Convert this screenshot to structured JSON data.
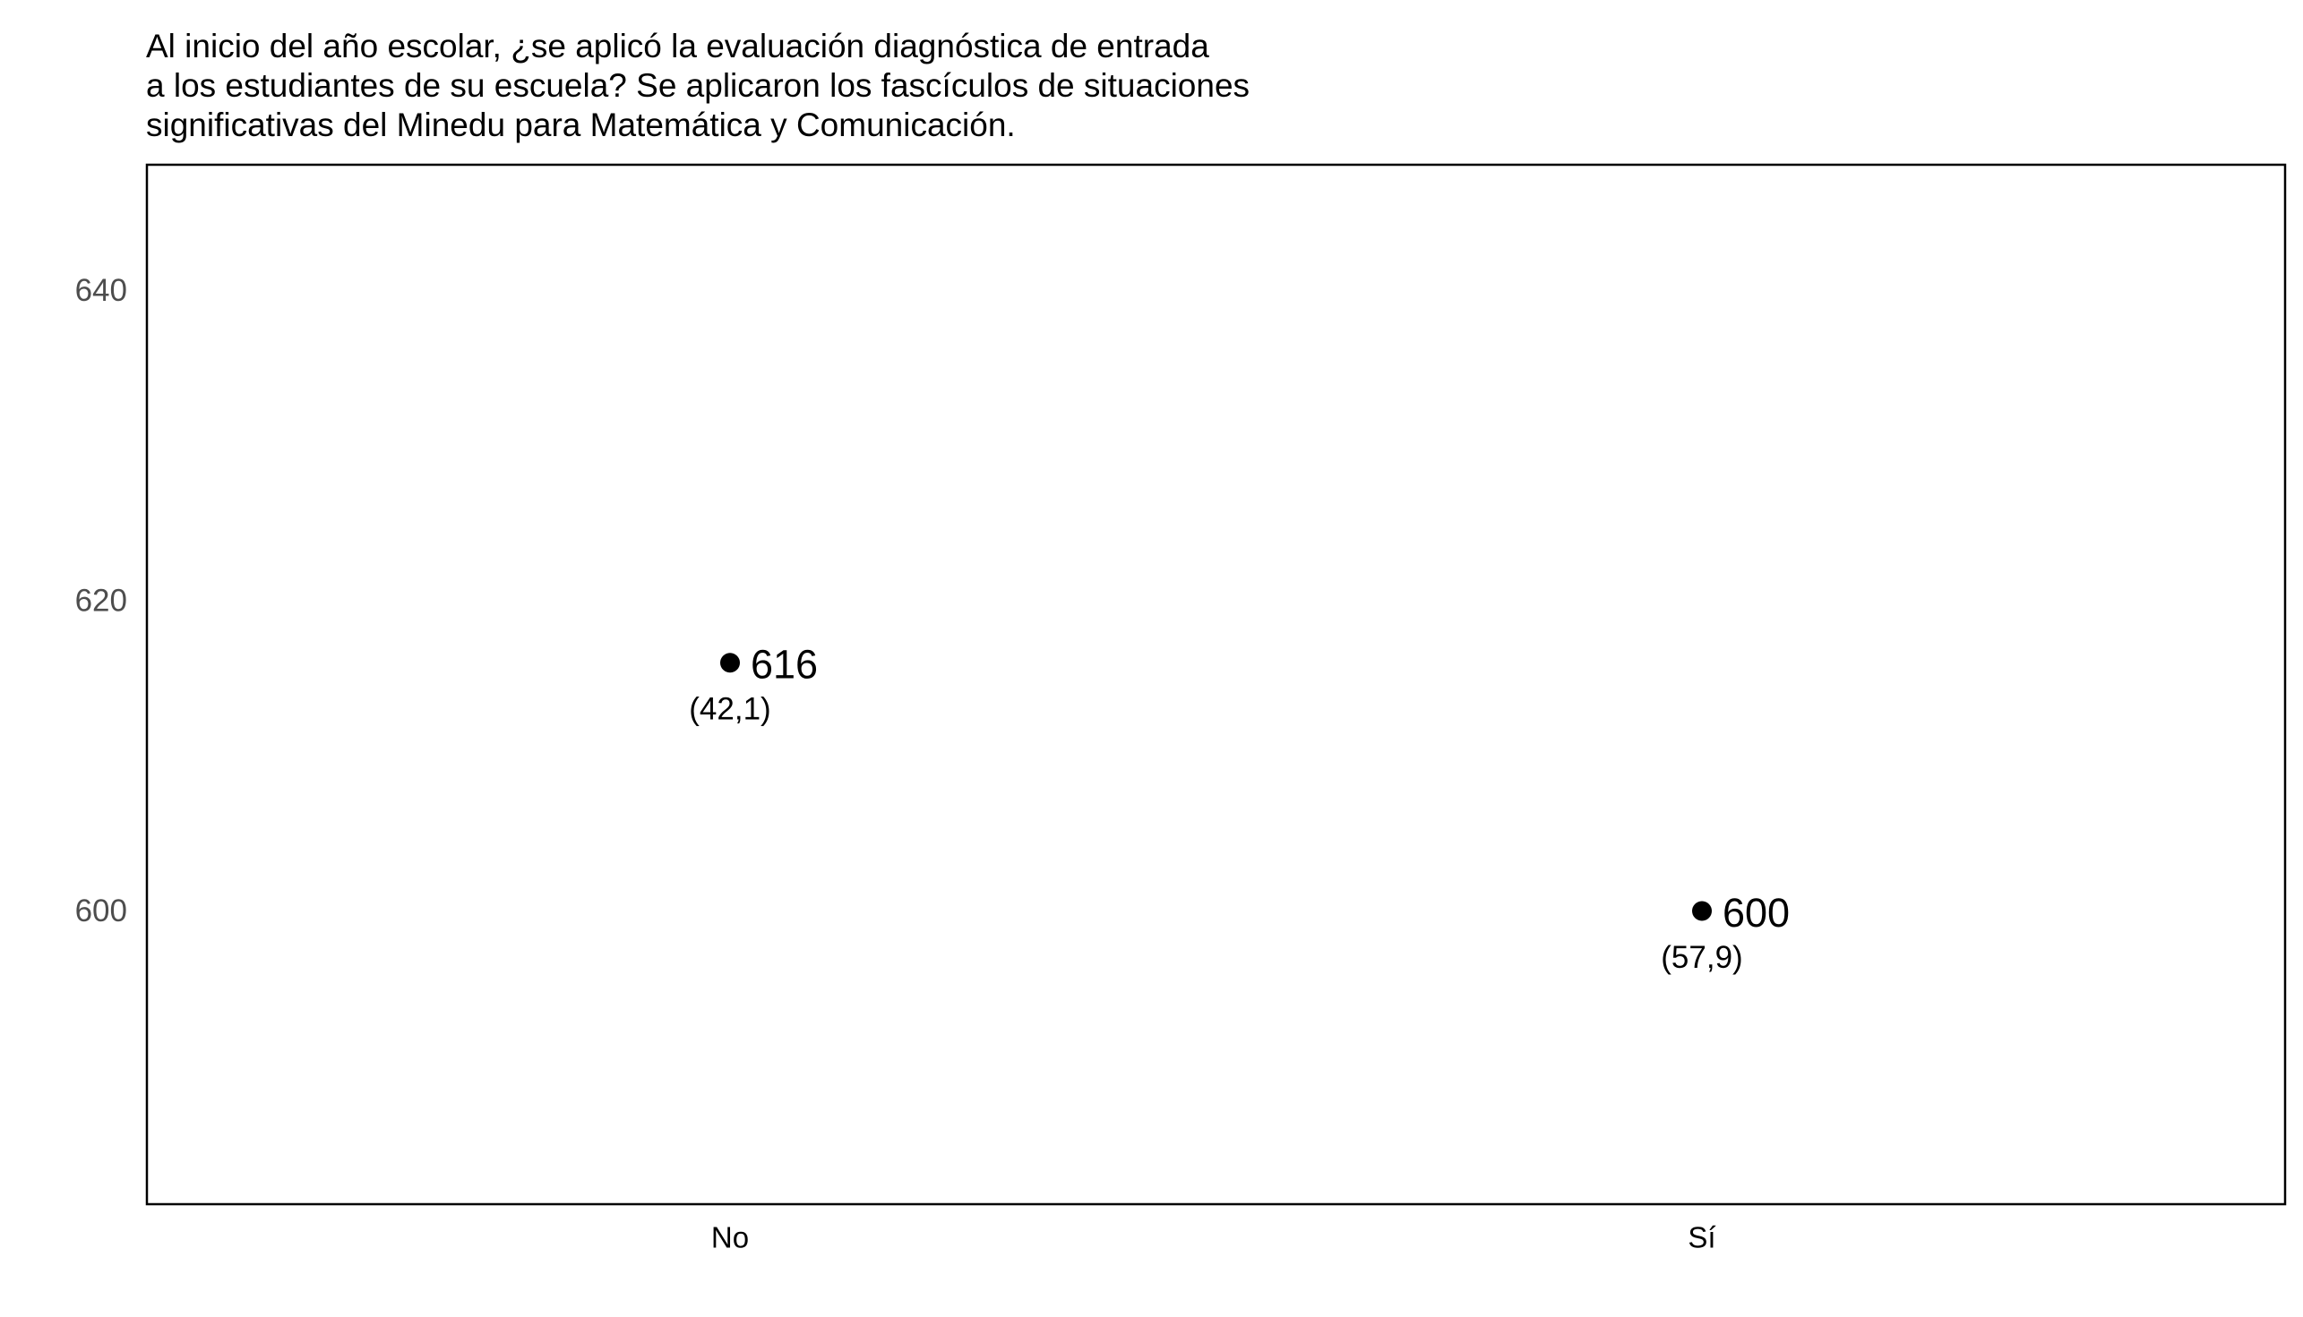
{
  "chart_data": {
    "type": "scatter",
    "title_lines": [
      "Al inicio del año escolar, ¿se aplicó la evaluación diagnóstica de entrada",
      "a los estudiantes de su escuela? Se aplicaron los fascículos de situaciones",
      "significativas del Minedu para Matemática y Comunicación."
    ],
    "xlabel": "",
    "ylabel": "",
    "categories": [
      "No",
      "Sí"
    ],
    "values": [
      616,
      600
    ],
    "point_labels": [
      "616",
      "600"
    ],
    "sub_labels": [
      "(42,1)",
      "(57,9)"
    ],
    "y_ticks": [
      600,
      620,
      640
    ],
    "y_tick_labels": [
      "600",
      "620",
      "640"
    ],
    "ylim": [
      581.1,
      648.1
    ],
    "grid": false,
    "legend": "none",
    "colors": {
      "point": "#000000",
      "frame": "#000000",
      "tick_text": "#4d4d4d",
      "text": "#000000",
      "background": "#ffffff"
    }
  }
}
